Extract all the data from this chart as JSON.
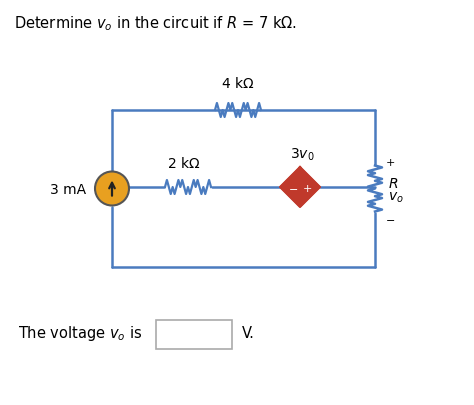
{
  "title": "Determine $v_o$ in the circuit if $R$ = 7 kΩ.",
  "bg_color": "#ffffff",
  "wire_color": "#4a7bbf",
  "dep_source_fill": "#c0392b",
  "current_source_fill": "#e8a020",
  "current_source_edge": "#555555",
  "text_color": "#000000",
  "box_edge": "#aaaaaa",
  "r4k_label": "4 k$\\Omega$",
  "r2k_label": "2 k$\\Omega$",
  "dep_label": "$3v_0$",
  "cs_label": "3 mA",
  "R_label": "$R$",
  "vo_label": "$v_o$",
  "bottom_text": "The voltage $v_o$ is",
  "bottom_unit": "V."
}
